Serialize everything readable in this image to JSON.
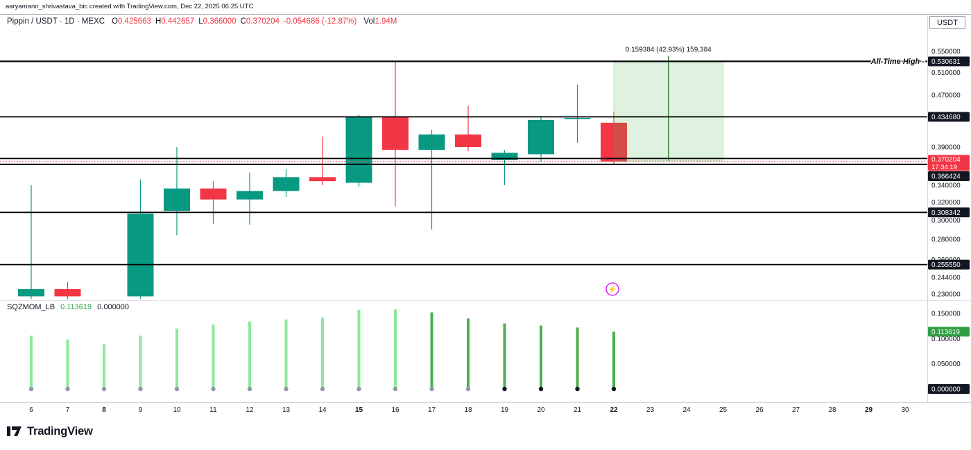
{
  "colors": {
    "up": "#089981",
    "down": "#F23645",
    "text": "#131722",
    "muted": "#787B86",
    "trend_line": "#000000",
    "projection_green": "#4CAF50",
    "projection_line": "#2E7D32",
    "bar_lime": "#8CE99A",
    "bar_green": "#4CAF50",
    "dot_gray": "#9598A1",
    "dot_black": "#131722",
    "badge_dark_bg": "#131722",
    "badge_red_bg": "#F23645",
    "badge_green_bg": "#2F9E44",
    "marker_magenta": "#D500F9",
    "border": "#9598A1",
    "separator": "#E0E3EB"
  },
  "attribution": "aaryamann_shrivastava_bic created with TradingView.com, Dec 22, 2025 06:25 UTC",
  "symbol_bar": {
    "title": "Pippin / USDT · 1D · MEXC",
    "o_label": "O",
    "o_value": "0.425663",
    "h_label": "H",
    "h_value": "0.442657",
    "l_label": "L",
    "l_value": "0.366000",
    "c_label": "C",
    "c_value": "0.370204",
    "change": "-0.054686 (-12.87%)",
    "vol_label": "Vol",
    "vol_value": "1.94M",
    "currency_button": "USDT"
  },
  "indicator_legend": {
    "name": "SQZMOM_LB",
    "value": "0.113619",
    "value_secondary": "0.000000"
  },
  "logo_text": "TradingView",
  "chart_data": [
    {
      "type": "candlestick",
      "title": "Pippin / USDT, 1D, MEXC",
      "scale": "log",
      "x_axis": {
        "unit": "day of Dec 2025",
        "ticks": [
          6,
          7,
          8,
          9,
          10,
          11,
          12,
          13,
          14,
          15,
          16,
          17,
          18,
          19,
          20,
          21,
          22,
          23,
          24,
          25,
          26,
          27,
          28,
          29,
          30
        ],
        "bold_ticks": [
          8,
          15,
          22,
          29
        ]
      },
      "y_axis": {
        "ticks": [
          "0.550000",
          "0.510000",
          "0.470000",
          "0.390000",
          "0.340000",
          "0.320000",
          "0.300000",
          "0.280000",
          "0.260000",
          "0.244000",
          "0.230000"
        ],
        "range_top": 0.5841,
        "range_bottom": 0.2254
      },
      "candles": [
        {
          "x": 6,
          "o": 0.228,
          "h": 0.34,
          "l": 0.226,
          "c": 0.234
        },
        {
          "x": 7,
          "o": 0.234,
          "h": 0.24,
          "l": 0.226,
          "c": 0.228
        },
        {
          "x": 9,
          "o": 0.228,
          "h": 0.347,
          "l": 0.226,
          "c": 0.307
        },
        {
          "x": 10,
          "o": 0.31,
          "h": 0.39,
          "l": 0.284,
          "c": 0.336
        },
        {
          "x": 11,
          "o": 0.336,
          "h": 0.345,
          "l": 0.296,
          "c": 0.323
        },
        {
          "x": 12,
          "o": 0.323,
          "h": 0.356,
          "l": 0.295,
          "c": 0.333
        },
        {
          "x": 13,
          "o": 0.333,
          "h": 0.36,
          "l": 0.326,
          "c": 0.35
        },
        {
          "x": 14,
          "o": 0.35,
          "h": 0.405,
          "l": 0.34,
          "c": 0.345
        },
        {
          "x": 15,
          "o": 0.343,
          "h": 0.438,
          "l": 0.338,
          "c": 0.435
        },
        {
          "x": 16,
          "o": 0.435,
          "h": 0.53,
          "l": 0.315,
          "c": 0.386
        },
        {
          "x": 17,
          "o": 0.386,
          "h": 0.415,
          "l": 0.29,
          "c": 0.408
        },
        {
          "x": 18,
          "o": 0.408,
          "h": 0.452,
          "l": 0.384,
          "c": 0.39
        },
        {
          "x": 19,
          "o": 0.372,
          "h": 0.386,
          "l": 0.34,
          "c": 0.382
        },
        {
          "x": 20,
          "o": 0.38,
          "h": 0.436,
          "l": 0.37,
          "c": 0.43
        },
        {
          "x": 21,
          "o": 0.431,
          "h": 0.488,
          "l": 0.396,
          "c": 0.433
        },
        {
          "x": 22,
          "o": 0.425663,
          "h": 0.442657,
          "l": 0.366,
          "c": 0.370204
        }
      ],
      "horizontal_lines": [
        {
          "price": 0.530631,
          "label": "All-Time High -",
          "badge": "0.530631"
        },
        {
          "price": 0.43468,
          "badge": "0.434680"
        },
        {
          "price": 0.3743
        },
        {
          "price": 0.366424,
          "badge": "0.366424",
          "badge_dy": 17
        },
        {
          "price": 0.308342,
          "badge": "0.308342"
        },
        {
          "price": 0.25555,
          "badge": "0.255550"
        }
      ],
      "last_price": {
        "price": 0.370204,
        "label": "0.370204",
        "countdown": "17:34:19",
        "badge_dy": 2
      },
      "projection_box": {
        "x_start": 22,
        "x_end": 25,
        "mid_x": 23.5,
        "price_low": 0.371247,
        "price_high": 0.530631,
        "label": "0.159384 (42.93%) 159,384"
      },
      "emoji_marker": {
        "x": 22,
        "price": 0.234,
        "symbol": "⚡"
      }
    },
    {
      "type": "bar",
      "name": "SQZMOM_LB",
      "x": [
        6,
        7,
        8,
        9,
        10,
        11,
        12,
        13,
        14,
        15,
        16,
        17,
        18,
        19,
        20,
        21,
        22
      ],
      "values": [
        0.106,
        0.098,
        0.089,
        0.106,
        0.12,
        0.128,
        0.134,
        0.138,
        0.142,
        0.157,
        0.158,
        0.152,
        0.14,
        0.13,
        0.126,
        0.122,
        0.113619
      ],
      "bar_colors": [
        "lime",
        "lime",
        "lime",
        "lime",
        "lime",
        "lime",
        "lime",
        "lime",
        "lime",
        "lime",
        "lime",
        "green",
        "green",
        "green",
        "green",
        "green",
        "green"
      ],
      "squeeze_dots": [
        "gray",
        "gray",
        "gray",
        "gray",
        "gray",
        "gray",
        "gray",
        "gray",
        "gray",
        "gray",
        "gray",
        "gray",
        "gray",
        "black",
        "black",
        "black",
        "black"
      ],
      "y_axis": {
        "ticks": [
          "0.150000",
          "0.100000",
          "0.050000"
        ],
        "badges": [
          {
            "text": "0.113619",
            "value": 0.113619,
            "style": "green"
          },
          {
            "text": "0.000000",
            "value": 0,
            "style": "dark"
          }
        ],
        "ylim": [
          0,
          0.165
        ]
      }
    }
  ]
}
